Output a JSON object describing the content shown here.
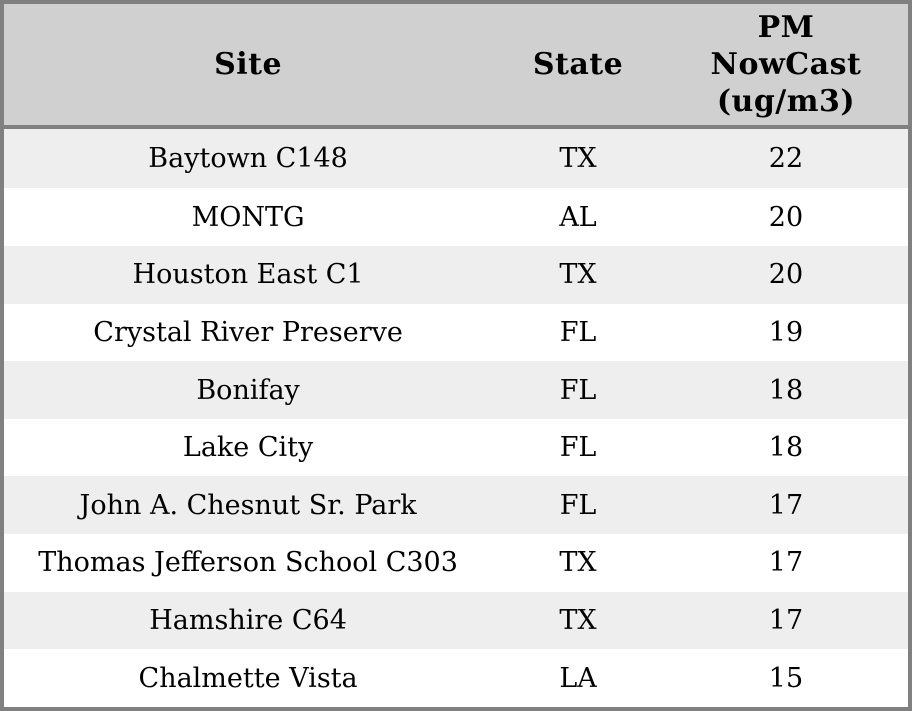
{
  "header": {
    "site": "Site",
    "state": "State",
    "pm_lines": [
      "PM",
      "NowCast",
      "(ug/m3)"
    ]
  },
  "rows": [
    {
      "site": "Baytown C148",
      "state": "TX",
      "pm": "22"
    },
    {
      "site": "MONTG",
      "state": "AL",
      "pm": "20"
    },
    {
      "site": "Houston East C1",
      "state": "TX",
      "pm": "20"
    },
    {
      "site": "Crystal River Preserve",
      "state": "FL",
      "pm": "19"
    },
    {
      "site": "Bonifay",
      "state": "FL",
      "pm": "18"
    },
    {
      "site": "Lake City",
      "state": "FL",
      "pm": "18"
    },
    {
      "site": "John A. Chesnut Sr. Park",
      "state": "FL",
      "pm": "17"
    },
    {
      "site": "Thomas Jefferson School C303",
      "state": "TX",
      "pm": "17"
    },
    {
      "site": "Hamshire C64",
      "state": "TX",
      "pm": "17"
    },
    {
      "site": "Chalmette Vista",
      "state": "LA",
      "pm": "15"
    }
  ],
  "chart_data": {
    "type": "table",
    "title": "",
    "columns": [
      "Site",
      "State",
      "PM NowCast (ug/m3)"
    ],
    "rows": [
      [
        "Baytown C148",
        "TX",
        22
      ],
      [
        "MONTG",
        "AL",
        20
      ],
      [
        "Houston East C1",
        "TX",
        20
      ],
      [
        "Crystal River Preserve",
        "FL",
        19
      ],
      [
        "Bonifay",
        "FL",
        18
      ],
      [
        "Lake City",
        "FL",
        18
      ],
      [
        "John A. Chesnut Sr. Park",
        "FL",
        17
      ],
      [
        "Thomas Jefferson School C303",
        "TX",
        17
      ],
      [
        "Hamshire C64",
        "TX",
        17
      ],
      [
        "Chalmette Vista",
        "LA",
        15
      ]
    ],
    "layout": {
      "striped_rows": true,
      "header_position": "top",
      "value_alignment": "center"
    }
  },
  "colors": {
    "header_bg": "#d0d0d0",
    "row_stripe_bg": "#eeeeee",
    "row_bg": "#ffffff",
    "border": "#808080",
    "text": "#000000"
  }
}
